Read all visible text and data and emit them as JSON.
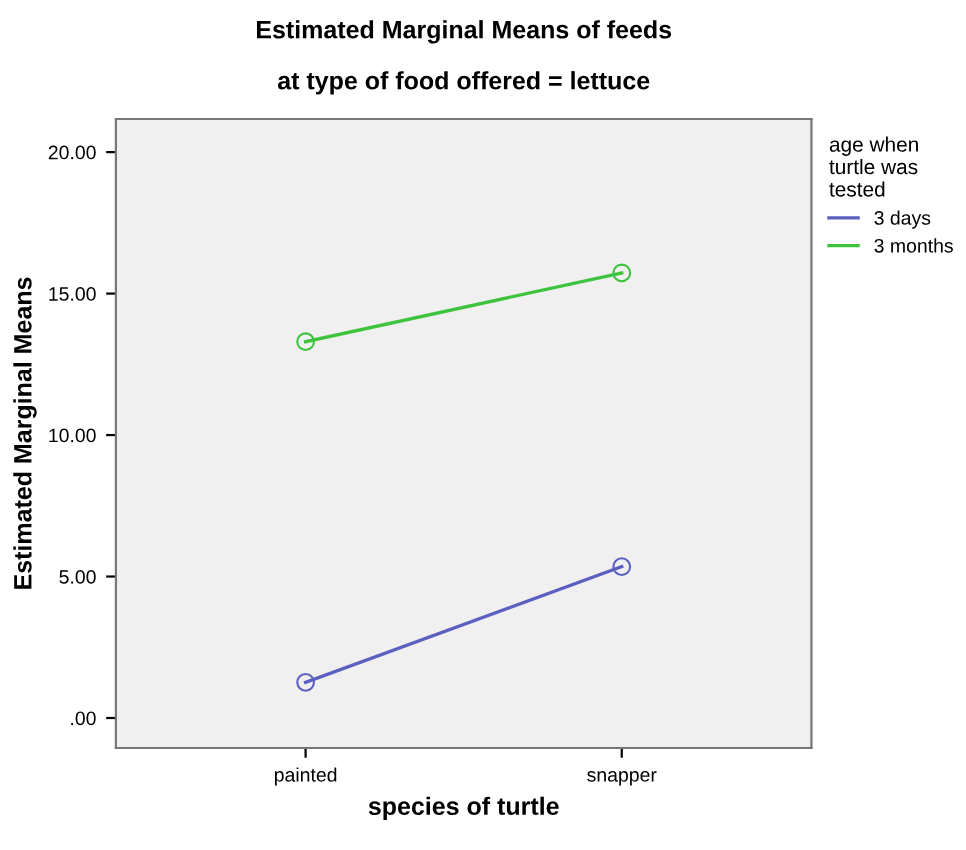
{
  "chart_data": {
    "type": "line",
    "title": "Estimated Marginal Means of feeds",
    "subtitle": "at type of food offered = lettuce",
    "xlabel": "species of turtle",
    "ylabel": "Estimated Marginal Means",
    "legend_title": "age when\nturtle was\ntested",
    "categories": [
      "painted",
      "snapper"
    ],
    "series": [
      {
        "name": "3 days",
        "color": "#5a5fc0",
        "values": [
          1.26,
          5.35
        ]
      },
      {
        "name": "3 months",
        "color": "#3ec33e",
        "values": [
          13.3,
          15.73
        ]
      }
    ],
    "ylim": [
      -1.06,
      21.17
    ],
    "yticks": [
      {
        "value": 0,
        "label": ".00"
      },
      {
        "value": 5,
        "label": "5.00"
      },
      {
        "value": 10,
        "label": "10.00"
      },
      {
        "value": 15,
        "label": "15.00"
      },
      {
        "value": 20,
        "label": "20.00"
      }
    ],
    "marker": "circle",
    "line_style": "solid",
    "legend": "top right",
    "grid": false
  }
}
